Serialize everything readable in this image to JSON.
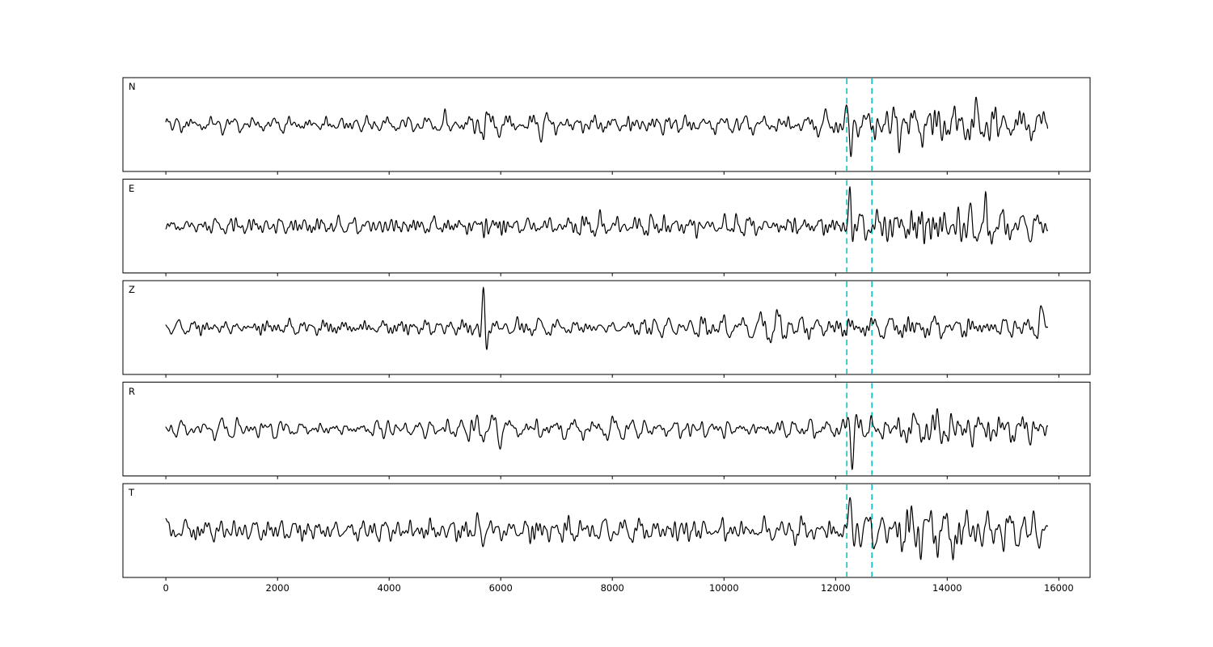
{
  "chart_data": {
    "type": "line",
    "title": "",
    "xlabel": "",
    "ylabel": "",
    "grid": false,
    "legend": "none",
    "x_axis": {
      "min": -770,
      "max": 16560
    },
    "xticks": [
      0,
      2000,
      4000,
      6000,
      8000,
      10000,
      12000,
      14000,
      16000
    ],
    "trace_x_range": [
      0,
      15800
    ],
    "line_color": "#000000",
    "pick_lines": {
      "color": "#00bfbf",
      "style": "dashed",
      "positions": [
        12200,
        12650
      ]
    },
    "channels": [
      {
        "label": "N",
        "seed": 11,
        "envelope": [
          [
            0,
            10
          ],
          [
            4800,
            10
          ],
          [
            5450,
            13
          ],
          [
            5700,
            19
          ],
          [
            6100,
            14
          ],
          [
            6900,
            13
          ],
          [
            7700,
            14
          ],
          [
            8700,
            12
          ],
          [
            10200,
            11
          ],
          [
            11600,
            11
          ],
          [
            12150,
            13
          ],
          [
            12600,
            18
          ],
          [
            13000,
            26
          ],
          [
            13500,
            33
          ],
          [
            13900,
            29
          ],
          [
            14600,
            23
          ],
          [
            15300,
            20
          ],
          [
            15800,
            16
          ]
        ],
        "wavelets": [
          {
            "x": 12270,
            "amp": -44,
            "width": 80,
            "period": 180
          }
        ]
      },
      {
        "label": "E",
        "seed": 22,
        "envelope": [
          [
            0,
            10
          ],
          [
            3000,
            10
          ],
          [
            5300,
            11
          ],
          [
            6100,
            13
          ],
          [
            7200,
            12
          ],
          [
            9200,
            12
          ],
          [
            11000,
            11
          ],
          [
            12100,
            12
          ],
          [
            12500,
            16
          ],
          [
            12900,
            18
          ],
          [
            13300,
            24
          ],
          [
            13800,
            28
          ],
          [
            14300,
            29
          ],
          [
            14900,
            21
          ],
          [
            15500,
            16
          ],
          [
            15800,
            14
          ]
        ],
        "wavelets": [
          {
            "x": 12255,
            "amp": 50,
            "width": 55,
            "period": 170
          }
        ]
      },
      {
        "label": "Z",
        "seed": 33,
        "envelope": [
          [
            0,
            9
          ],
          [
            2500,
            10
          ],
          [
            5200,
            11
          ],
          [
            6300,
            13
          ],
          [
            7600,
            12
          ],
          [
            9500,
            13
          ],
          [
            11200,
            12
          ],
          [
            12300,
            13
          ],
          [
            12800,
            15
          ],
          [
            13600,
            14
          ],
          [
            15000,
            13
          ],
          [
            15800,
            12
          ]
        ],
        "wavelets": [
          {
            "x": 5690,
            "amp": 50,
            "width": 65,
            "period": 140
          },
          {
            "x": 15680,
            "amp": 28,
            "width": 70,
            "period": 200
          }
        ]
      },
      {
        "label": "R",
        "seed": 44,
        "envelope": [
          [
            0,
            10
          ],
          [
            4900,
            10
          ],
          [
            5600,
            15
          ],
          [
            6300,
            13
          ],
          [
            7800,
            14
          ],
          [
            9200,
            12
          ],
          [
            10800,
            11
          ],
          [
            12150,
            12
          ],
          [
            12500,
            17
          ],
          [
            13000,
            21
          ],
          [
            13400,
            30
          ],
          [
            13900,
            33
          ],
          [
            14400,
            26
          ],
          [
            15100,
            21
          ],
          [
            15800,
            15
          ]
        ],
        "wavelets": [
          {
            "x": 12300,
            "amp": -42,
            "width": 80,
            "period": 180
          }
        ]
      },
      {
        "label": "T",
        "seed": 55,
        "envelope": [
          [
            0,
            13
          ],
          [
            1600,
            15
          ],
          [
            3200,
            14
          ],
          [
            4600,
            15
          ],
          [
            5700,
            18
          ],
          [
            6300,
            20
          ],
          [
            7000,
            18
          ],
          [
            7900,
            14
          ],
          [
            8900,
            16
          ],
          [
            9900,
            14
          ],
          [
            11200,
            13
          ],
          [
            12100,
            13
          ],
          [
            12500,
            20
          ],
          [
            12900,
            22
          ],
          [
            13400,
            28
          ],
          [
            13900,
            30
          ],
          [
            14250,
            33
          ],
          [
            14800,
            23
          ],
          [
            15400,
            17
          ],
          [
            15800,
            14
          ]
        ],
        "wavelets": [
          {
            "x": 12260,
            "amp": 44,
            "width": 60,
            "period": 180
          },
          {
            "x": 14100,
            "amp": -36,
            "width": 90,
            "period": 240
          }
        ]
      }
    ]
  }
}
